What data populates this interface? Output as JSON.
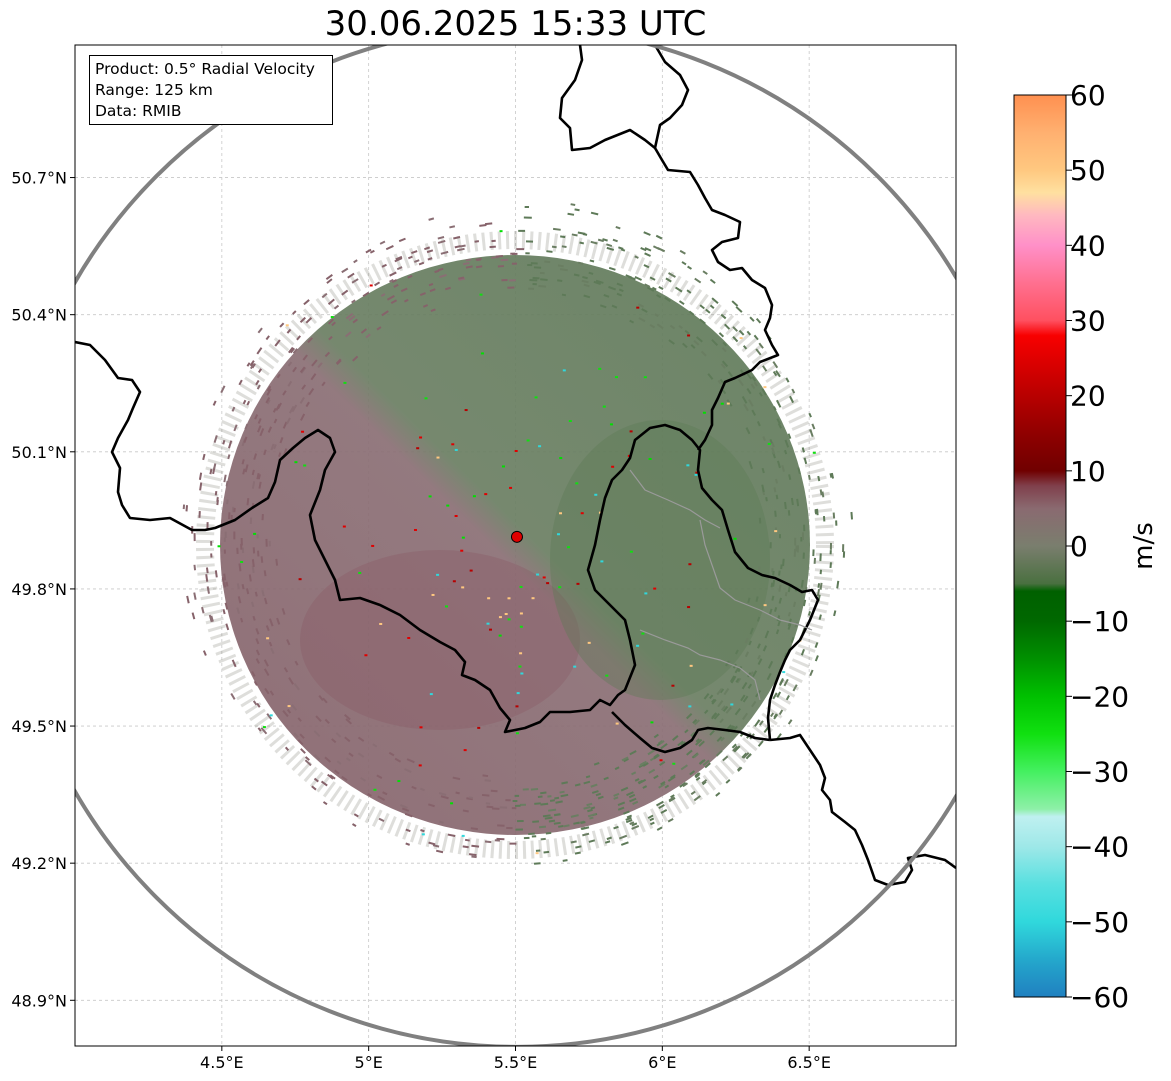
{
  "title": "30.06.2025 15:33 UTC",
  "info": {
    "product": "Product: 0.5° Radial Velocity",
    "range": "Range: 125 km",
    "data": "Data: RMIB"
  },
  "map": {
    "lon_range": [
      4.0,
      7.0
    ],
    "lat_range": [
      48.8,
      50.99
    ],
    "lat_ticks": [
      {
        "value": 48.9,
        "label": "48.9°N"
      },
      {
        "value": 49.2,
        "label": "49.2°N"
      },
      {
        "value": 49.5,
        "label": "49.5°N"
      },
      {
        "value": 49.8,
        "label": "49.8°N"
      },
      {
        "value": 50.1,
        "label": "50.1°N"
      },
      {
        "value": 50.4,
        "label": "50.4°N"
      },
      {
        "value": 50.7,
        "label": "50.7°N"
      }
    ],
    "lon_ticks": [
      {
        "value": 4.5,
        "label": "4.5°E"
      },
      {
        "value": 5.0,
        "label": "5°E"
      },
      {
        "value": 5.5,
        "label": "5.5°E"
      },
      {
        "value": 6.0,
        "label": "6°E"
      },
      {
        "value": 6.5,
        "label": "6.5°E"
      }
    ],
    "radar_site": {
      "lon": 5.505,
      "lat": 49.914
    },
    "range_km": 125,
    "gridlines": true,
    "colors": {
      "site": "#e00000",
      "range_ring": "#808080",
      "border": "#000000",
      "grid": "#c8c8c8"
    }
  },
  "colorbar": {
    "label": "m/s",
    "min": -60,
    "max": 60,
    "ticks": [
      {
        "value": 60,
        "label": "60"
      },
      {
        "value": 50,
        "label": "50"
      },
      {
        "value": 40,
        "label": "40"
      },
      {
        "value": 30,
        "label": "30"
      },
      {
        "value": 20,
        "label": "20"
      },
      {
        "value": 10,
        "label": "10"
      },
      {
        "value": 0,
        "label": "0"
      },
      {
        "value": -10,
        "label": "−10"
      },
      {
        "value": -20,
        "label": "−20"
      },
      {
        "value": -30,
        "label": "−30"
      },
      {
        "value": -40,
        "label": "−40"
      },
      {
        "value": -50,
        "label": "−50"
      },
      {
        "value": -60,
        "label": "−60"
      }
    ],
    "stops": [
      {
        "value": -60,
        "color": "#2080c0"
      },
      {
        "value": -55,
        "color": "#24a8cc"
      },
      {
        "value": -50,
        "color": "#30d8dc"
      },
      {
        "value": -45,
        "color": "#58e0e0"
      },
      {
        "value": -40,
        "color": "#9ee8e8"
      },
      {
        "value": -36,
        "color": "#bff0f0"
      },
      {
        "value": -35,
        "color": "#8ef0a8"
      },
      {
        "value": -30,
        "color": "#44f060"
      },
      {
        "value": -25,
        "color": "#10e010"
      },
      {
        "value": -20,
        "color": "#00c000"
      },
      {
        "value": -15,
        "color": "#009000"
      },
      {
        "value": -10,
        "color": "#006800"
      },
      {
        "value": -6,
        "color": "#006000"
      },
      {
        "value": -5,
        "color": "#4a7040"
      },
      {
        "value": 0,
        "color": "#7a7e6e"
      },
      {
        "value": 5,
        "color": "#8a6a70"
      },
      {
        "value": 8,
        "color": "#80404c"
      },
      {
        "value": 10,
        "color": "#700000"
      },
      {
        "value": 15,
        "color": "#900000"
      },
      {
        "value": 20,
        "color": "#b80000"
      },
      {
        "value": 25,
        "color": "#e00000"
      },
      {
        "value": 28,
        "color": "#f80000"
      },
      {
        "value": 30,
        "color": "#ff5060"
      },
      {
        "value": 35,
        "color": "#ff7090"
      },
      {
        "value": 40,
        "color": "#ff90c8"
      },
      {
        "value": 44,
        "color": "#ffb8c0"
      },
      {
        "value": 47,
        "color": "#ffe0a0"
      },
      {
        "value": 50,
        "color": "#ffc880"
      },
      {
        "value": 55,
        "color": "#ffb070"
      },
      {
        "value": 60,
        "color": "#ff9050"
      }
    ]
  }
}
